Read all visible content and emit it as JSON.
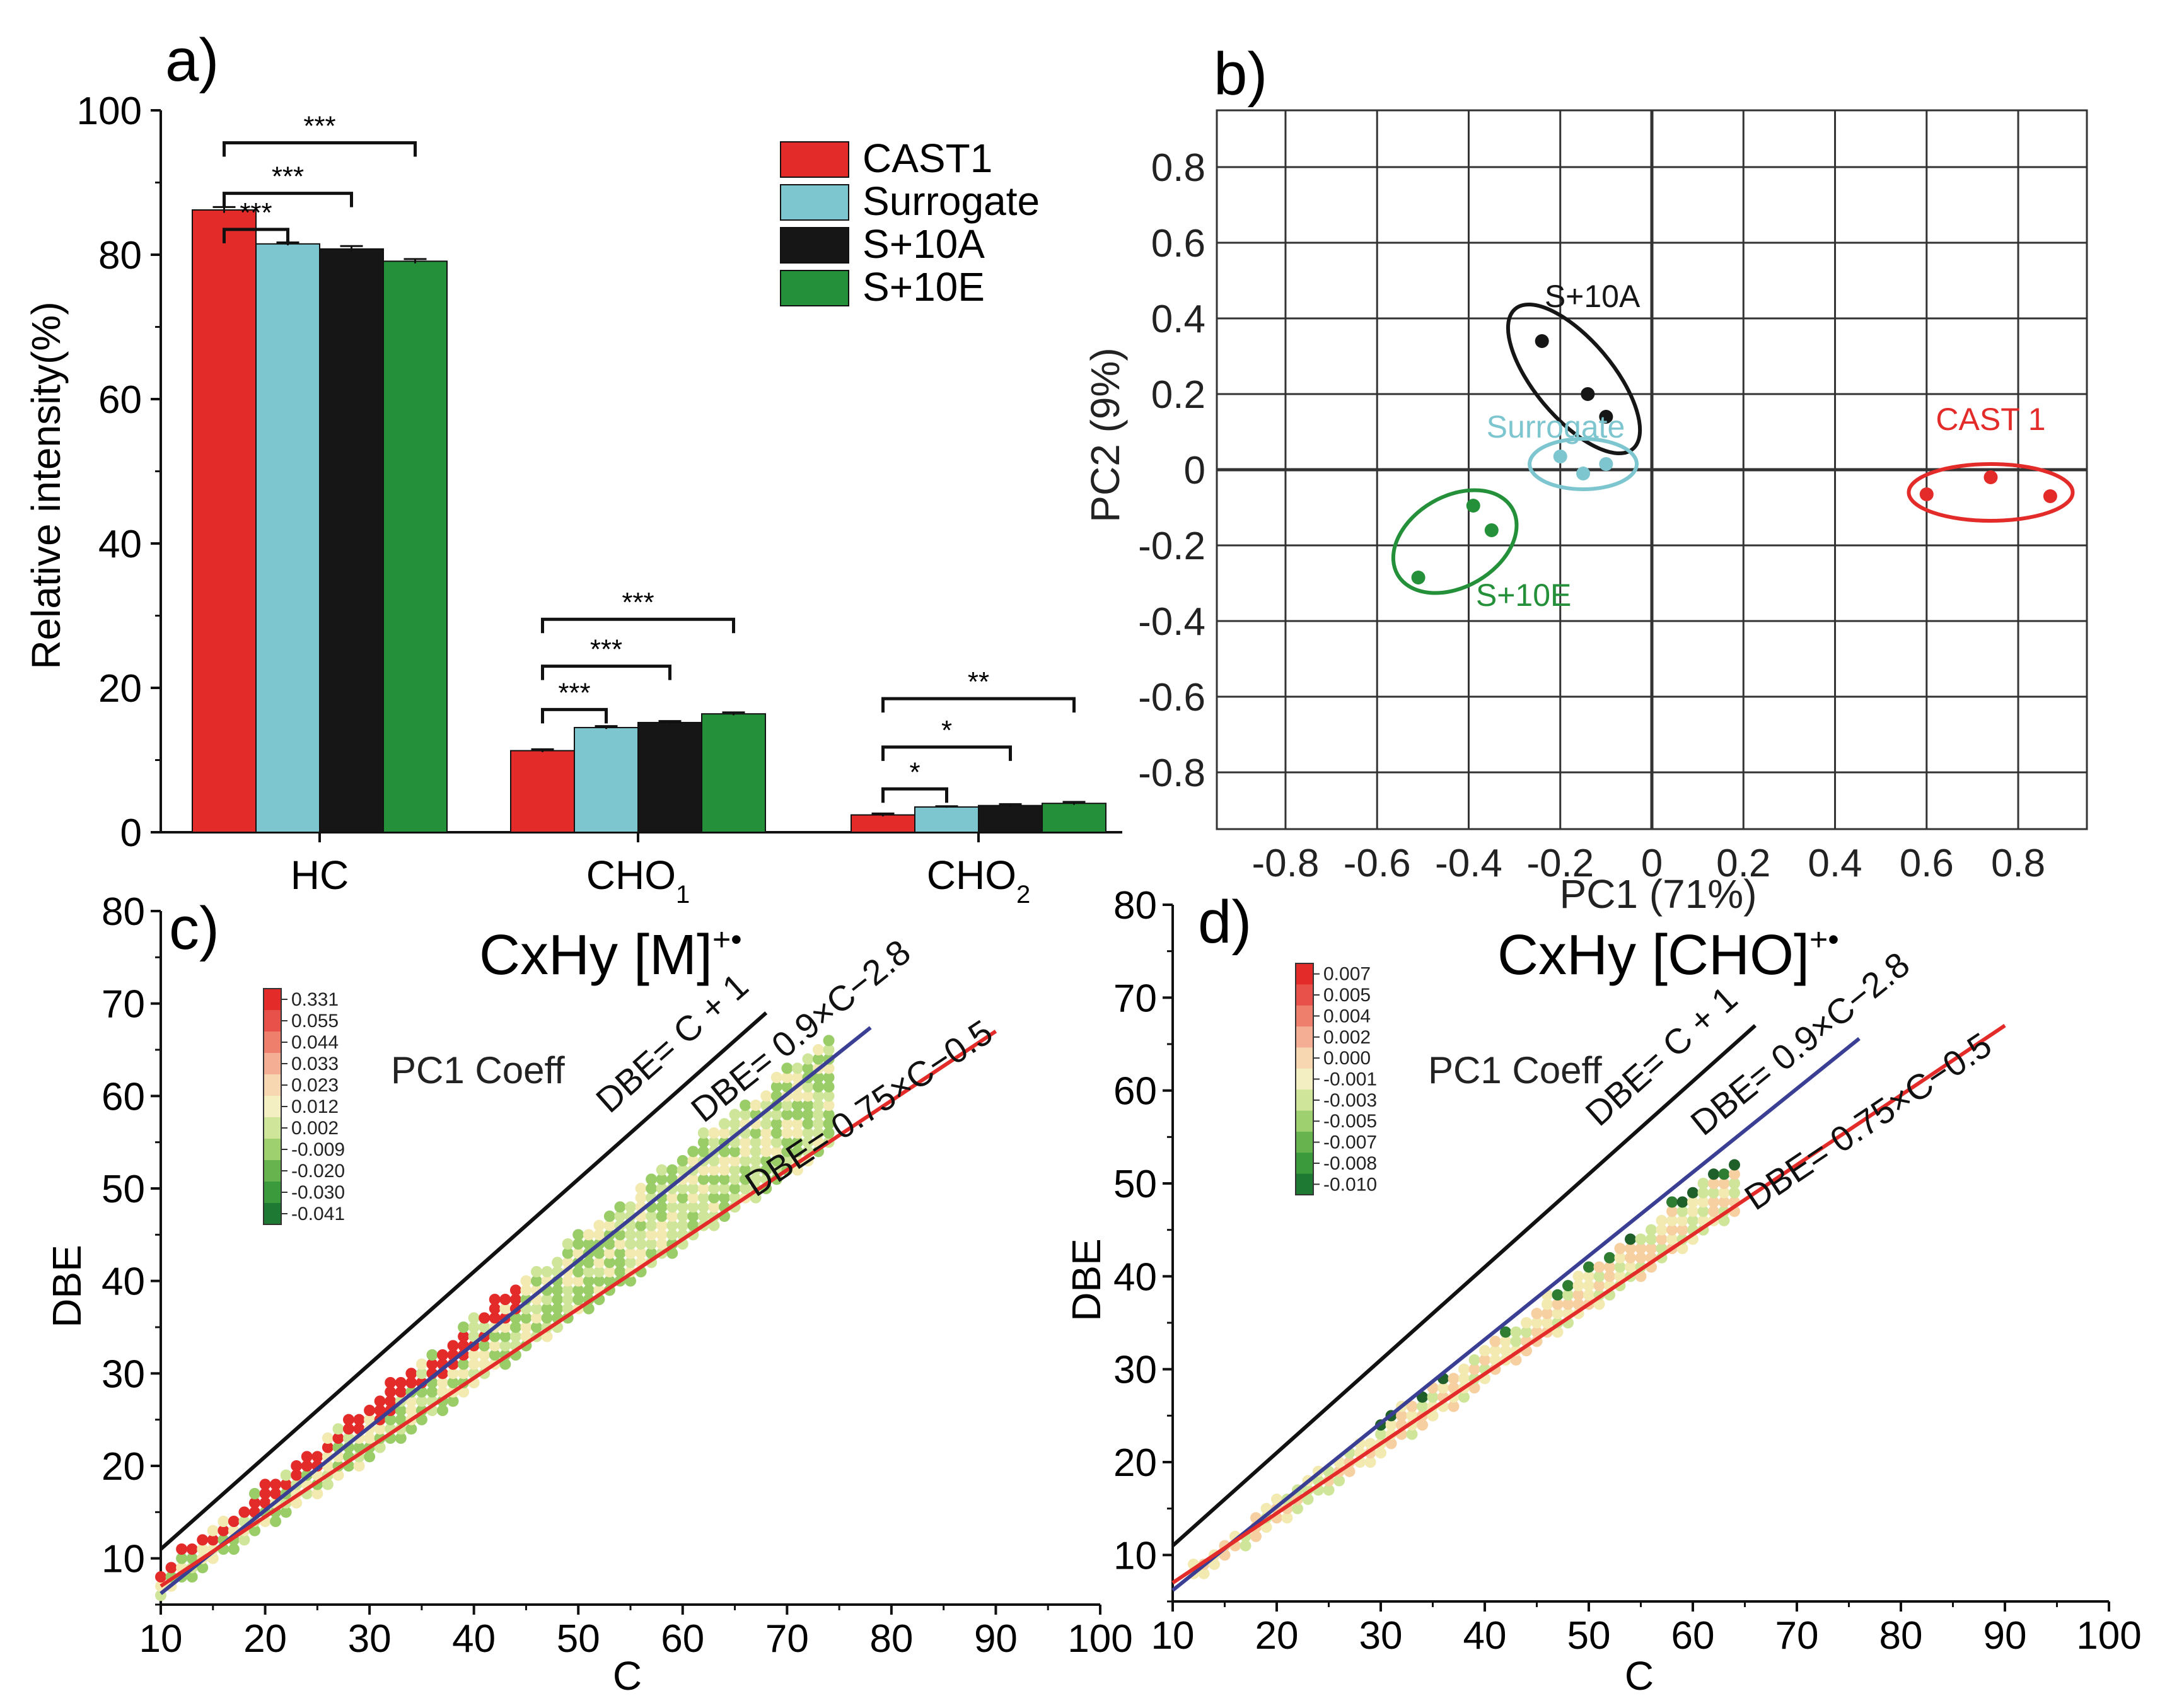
{
  "colors": {
    "cast1": "#e32b29",
    "surrogate": "#7ec6cf",
    "s10a": "#161616",
    "s10e": "#25903a",
    "line_black": "#111111",
    "line_blue": "#3a3f94",
    "line_red": "#e32b29"
  },
  "chart_data": [
    {
      "panel": "a)",
      "type": "bar",
      "ylabel": "Relative intensity(%)",
      "ylim": [
        0,
        100
      ],
      "yticks": [
        0,
        20,
        40,
        60,
        80,
        100
      ],
      "categories": [
        "HC",
        "CHO",
        "CHO"
      ],
      "category_subscripts": [
        "",
        "1",
        "2"
      ],
      "series": [
        {
          "name": "CAST1",
          "color": "#e32b29",
          "values": [
            86.2,
            11.3,
            2.4
          ],
          "errors": [
            0.4,
            0.2,
            0.2
          ]
        },
        {
          "name": "Surrogate",
          "color": "#7ec6cf",
          "values": [
            81.5,
            14.5,
            3.5
          ],
          "errors": [
            0.2,
            0.2,
            0.1
          ]
        },
        {
          "name": "S+10A",
          "color": "#161616",
          "values": [
            80.8,
            15.2,
            3.7
          ],
          "errors": [
            0.4,
            0.2,
            0.2
          ]
        },
        {
          "name": "S+10E",
          "color": "#25903a",
          "values": [
            79.1,
            16.4,
            4.0
          ],
          "errors": [
            0.3,
            0.2,
            0.2
          ]
        }
      ],
      "legend": "top-right",
      "significance": [
        {
          "group": 0,
          "from": 0,
          "to": 1,
          "label": "***",
          "level": 83.5
        },
        {
          "group": 0,
          "from": 0,
          "to": 2,
          "label": "***",
          "level": 88.5
        },
        {
          "group": 0,
          "from": 0,
          "to": 3,
          "label": "***",
          "level": 95.5
        },
        {
          "group": 1,
          "from": 0,
          "to": 1,
          "label": "***",
          "level": 17.0
        },
        {
          "group": 1,
          "from": 0,
          "to": 2,
          "label": "***",
          "level": 23.0
        },
        {
          "group": 1,
          "from": 0,
          "to": 3,
          "label": "***",
          "level": 29.5
        },
        {
          "group": 2,
          "from": 0,
          "to": 1,
          "label": "*",
          "level": 6.0
        },
        {
          "group": 2,
          "from": 0,
          "to": 2,
          "label": "*",
          "level": 11.8
        },
        {
          "group": 2,
          "from": 0,
          "to": 3,
          "label": "**",
          "level": 18.5
        }
      ]
    },
    {
      "panel": "b)",
      "type": "scatter",
      "xlabel": "PC1 (71%)",
      "ylabel": "PC2 (9%)",
      "xlim": [
        -0.95,
        0.95
      ],
      "ylim": [
        -0.95,
        0.95
      ],
      "xticks": [
        -0.8,
        -0.6,
        -0.4,
        -0.2,
        0,
        0.2,
        0.4,
        0.6,
        0.8
      ],
      "yticks": [
        -0.8,
        -0.6,
        -0.4,
        -0.2,
        0,
        0.2,
        0.4,
        0.6,
        0.8
      ],
      "xtick_labels": [
        "-0.8",
        "-0.6",
        "-0.4",
        "-0.2",
        "0",
        "0.2",
        "0.4",
        "0.6",
        "0.8"
      ],
      "ytick_labels": [
        "-0.8",
        "-0.6",
        "-0.4",
        "-0.2",
        "0",
        "0.2",
        "0.4",
        "0.6",
        "0.8"
      ],
      "series": [
        {
          "name": "S+10A",
          "color": "#161616",
          "x": [
            -0.24,
            -0.14,
            -0.1
          ],
          "y": [
            0.34,
            0.2,
            0.14
          ]
        },
        {
          "name": "Surrogate",
          "color": "#7ec6cf",
          "x": [
            -0.2,
            -0.15,
            -0.1
          ],
          "y": [
            0.035,
            -0.01,
            0.015
          ]
        },
        {
          "name": "CAST 1",
          "color": "#e32b29",
          "x": [
            0.6,
            0.74,
            0.87
          ],
          "y": [
            -0.065,
            -0.02,
            -0.07
          ]
        },
        {
          "name": "S+10E",
          "color": "#25903a",
          "x": [
            -0.51,
            -0.39,
            -0.35
          ],
          "y": [
            -0.285,
            -0.095,
            -0.16
          ]
        }
      ]
    },
    {
      "panel": "c)",
      "type": "scatter",
      "title": "CxHy [M]",
      "title_sup": "+•",
      "xlabel": "C",
      "ylabel": "DBE",
      "xlim": [
        10,
        100
      ],
      "ylim": [
        5,
        80
      ],
      "xticks": [
        10,
        20,
        30,
        40,
        50,
        60,
        70,
        80,
        90,
        100
      ],
      "yticks": [
        10,
        20,
        30,
        40,
        50,
        60,
        70,
        80
      ],
      "colorbar_title": "PC1 Coeff",
      "colorbar_labels": [
        "0.331",
        "0.055",
        "0.044",
        "0.033",
        "0.023",
        "0.012",
        "0.002",
        "-0.009",
        "-0.020",
        "-0.030",
        "-0.041"
      ],
      "lines": [
        {
          "label": "DBE= C + 1",
          "slope": 1.0,
          "intercept": 1.0,
          "x": [
            10,
            68
          ],
          "color": "#111111"
        },
        {
          "label": "DBE= 0.9×C−2.8",
          "slope": 0.9,
          "intercept": -2.8,
          "x": [
            10,
            78
          ],
          "color": "#3a3f94"
        },
        {
          "label": "DBE= 0.75×C−0.5",
          "slope": 0.75,
          "intercept": -0.5,
          "x": [
            10,
            90
          ],
          "color": "#e32b29"
        }
      ],
      "scatter_band": {
        "x_range": [
          10,
          74
        ],
        "mode": "mixed_red_dominant"
      }
    },
    {
      "panel": "d)",
      "type": "scatter",
      "title": "CxHy [CHO]",
      "title_sup": "+•",
      "xlabel": "C",
      "ylabel": "DBE",
      "xlim": [
        10,
        100
      ],
      "ylim": [
        5,
        80
      ],
      "xticks": [
        10,
        20,
        30,
        40,
        50,
        60,
        70,
        80,
        90,
        100
      ],
      "yticks": [
        10,
        20,
        30,
        40,
        50,
        60,
        70,
        80
      ],
      "colorbar_title": "PC1 Coeff",
      "colorbar_labels": [
        "0.007",
        "0.005",
        "0.004",
        "0.002",
        "0.000",
        "-0.001",
        "-0.003",
        "-0.005",
        "-0.007",
        "-0.008",
        "-0.010"
      ],
      "lines": [
        {
          "label": "DBE= C + 1",
          "slope": 1.0,
          "intercept": 1.0,
          "x": [
            10,
            66
          ],
          "color": "#111111"
        },
        {
          "label": "DBE= 0.9×C−2.8",
          "slope": 0.9,
          "intercept": -2.8,
          "x": [
            10,
            76
          ],
          "color": "#3a3f94"
        },
        {
          "label": "DBE= 0.75×C−0.5",
          "slope": 0.75,
          "intercept": -0.5,
          "x": [
            10,
            90
          ],
          "color": "#e32b29"
        }
      ],
      "scatter_band": {
        "x_range": [
          12,
          64
        ],
        "mode": "mixed_green_dominant"
      }
    }
  ]
}
